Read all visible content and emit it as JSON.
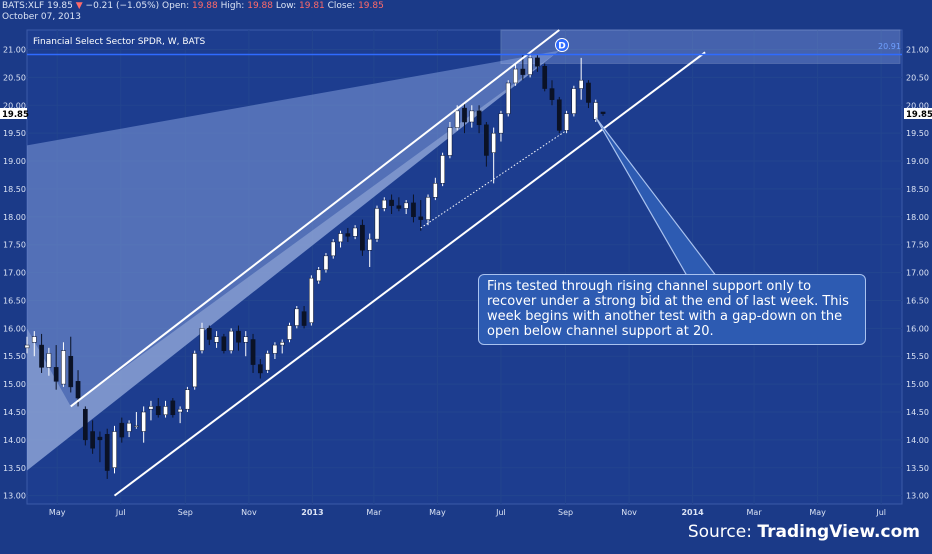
{
  "header": {
    "symbol": "BATS:XLF",
    "last": "19.85",
    "change_arrow": "▼",
    "change": "−0.21 (−1.05%)",
    "open_label": "Open:",
    "open": "19.88",
    "high_label": "High:",
    "high": "19.88",
    "low_label": "Low:",
    "low": "19.81",
    "close_label": "Close:",
    "close": "19.85",
    "date": "October 07, 2013"
  },
  "pane_title": "Financial Select Sector SPDR, W, BATS",
  "price_badge_left": "19.85",
  "price_badge_right": "19.85",
  "marker_label": "D",
  "level_label": "20.91",
  "annotation": "Fins tested through rising channel support only to recover under a strong bid at the end of last week. This week begins with another test with a gap-down on the open below channel support at 20.",
  "source_prefix": "Source: ",
  "source_name": "TradingView.com",
  "colors": {
    "background": "#1b3a88",
    "up": "#ffffff",
    "down": "#0b1226",
    "line": "#ffffff",
    "level": "#2f6bff"
  },
  "chart_data": {
    "type": "candlestick",
    "title": "Financial Select Sector SPDR, W, BATS",
    "ylim": [
      12.85,
      21.35
    ],
    "yticks": [
      "21.00",
      "20.50",
      "20.00",
      "19.50",
      "19.00",
      "18.50",
      "18.00",
      "17.50",
      "17.00",
      "16.50",
      "16.00",
      "15.50",
      "15.00",
      "14.50",
      "14.00",
      "13.50",
      "13.00"
    ],
    "xticks": [
      "May",
      "Jul",
      "Sep",
      "Nov",
      "2013",
      "Mar",
      "May",
      "Jul",
      "Sep",
      "Nov",
      "2014",
      "Mar",
      "May",
      "Jul"
    ],
    "xrange": [
      "2012-04-02",
      "2014-07-21"
    ],
    "candles": [
      {
        "t": "2012-04-02",
        "o": 15.65,
        "h": 15.85,
        "l": 15.55,
        "c": 15.7
      },
      {
        "t": "2012-04-09",
        "o": 15.75,
        "h": 15.95,
        "l": 15.5,
        "c": 15.85
      },
      {
        "t": "2012-04-16",
        "o": 15.7,
        "h": 15.9,
        "l": 15.2,
        "c": 15.3
      },
      {
        "t": "2012-04-23",
        "o": 15.3,
        "h": 15.65,
        "l": 15.15,
        "c": 15.55
      },
      {
        "t": "2012-04-30",
        "o": 15.3,
        "h": 15.7,
        "l": 14.9,
        "c": 15.05
      },
      {
        "t": "2012-05-07",
        "o": 15.0,
        "h": 15.75,
        "l": 14.95,
        "c": 15.6
      },
      {
        "t": "2012-05-14",
        "o": 15.5,
        "h": 15.85,
        "l": 14.85,
        "c": 14.95
      },
      {
        "t": "2012-05-21",
        "o": 15.05,
        "h": 15.25,
        "l": 14.6,
        "c": 14.75
      },
      {
        "t": "2012-05-28",
        "o": 14.55,
        "h": 14.6,
        "l": 13.9,
        "c": 14.0
      },
      {
        "t": "2012-06-04",
        "o": 14.15,
        "h": 14.35,
        "l": 13.75,
        "c": 13.85
      },
      {
        "t": "2012-06-11",
        "o": 14.05,
        "h": 14.15,
        "l": 13.6,
        "c": 14.0
      },
      {
        "t": "2012-06-18",
        "o": 14.1,
        "h": 14.2,
        "l": 13.3,
        "c": 13.45
      },
      {
        "t": "2012-06-25",
        "o": 13.5,
        "h": 14.25,
        "l": 13.4,
        "c": 14.15
      },
      {
        "t": "2012-07-02",
        "o": 14.3,
        "h": 14.4,
        "l": 13.95,
        "c": 14.05
      },
      {
        "t": "2012-07-09",
        "o": 14.15,
        "h": 14.35,
        "l": 14.05,
        "c": 14.3
      },
      {
        "t": "2012-07-16",
        "o": 14.25,
        "h": 14.5,
        "l": 14.2,
        "c": 14.25
      },
      {
        "t": "2012-07-23",
        "o": 14.15,
        "h": 14.6,
        "l": 13.95,
        "c": 14.5
      },
      {
        "t": "2012-07-30",
        "o": 14.55,
        "h": 14.7,
        "l": 14.35,
        "c": 14.6
      },
      {
        "t": "2012-08-06",
        "o": 14.6,
        "h": 14.75,
        "l": 14.4,
        "c": 14.45
      },
      {
        "t": "2012-08-13",
        "o": 14.45,
        "h": 14.7,
        "l": 14.4,
        "c": 14.6
      },
      {
        "t": "2012-08-20",
        "o": 14.7,
        "h": 14.75,
        "l": 14.4,
        "c": 14.45
      },
      {
        "t": "2012-08-27",
        "o": 14.5,
        "h": 14.6,
        "l": 14.3,
        "c": 14.55
      },
      {
        "t": "2012-09-03",
        "o": 14.55,
        "h": 14.95,
        "l": 14.5,
        "c": 14.9
      },
      {
        "t": "2012-09-10",
        "o": 14.95,
        "h": 15.6,
        "l": 14.9,
        "c": 15.55
      },
      {
        "t": "2012-09-17",
        "o": 15.6,
        "h": 16.1,
        "l": 15.55,
        "c": 16.0
      },
      {
        "t": "2012-09-24",
        "o": 16.0,
        "h": 16.05,
        "l": 15.7,
        "c": 15.8
      },
      {
        "t": "2012-10-01",
        "o": 15.75,
        "h": 15.95,
        "l": 15.65,
        "c": 15.85
      },
      {
        "t": "2012-10-08",
        "o": 15.85,
        "h": 15.9,
        "l": 15.55,
        "c": 15.6
      },
      {
        "t": "2012-10-15",
        "o": 15.6,
        "h": 16.0,
        "l": 15.55,
        "c": 15.95
      },
      {
        "t": "2012-10-22",
        "o": 15.95,
        "h": 16.05,
        "l": 15.6,
        "c": 15.75
      },
      {
        "t": "2012-10-29",
        "o": 15.75,
        "h": 15.95,
        "l": 15.5,
        "c": 15.85
      },
      {
        "t": "2012-11-05",
        "o": 15.8,
        "h": 15.9,
        "l": 15.2,
        "c": 15.35
      },
      {
        "t": "2012-11-12",
        "o": 15.35,
        "h": 15.45,
        "l": 15.1,
        "c": 15.2
      },
      {
        "t": "2012-11-19",
        "o": 15.25,
        "h": 15.6,
        "l": 15.2,
        "c": 15.55
      },
      {
        "t": "2012-11-26",
        "o": 15.55,
        "h": 15.75,
        "l": 15.45,
        "c": 15.7
      },
      {
        "t": "2012-12-03",
        "o": 15.7,
        "h": 15.8,
        "l": 15.55,
        "c": 15.75
      },
      {
        "t": "2012-12-10",
        "o": 15.8,
        "h": 16.1,
        "l": 15.75,
        "c": 16.05
      },
      {
        "t": "2012-12-17",
        "o": 16.05,
        "h": 16.4,
        "l": 16.0,
        "c": 16.35
      },
      {
        "t": "2012-12-24",
        "o": 16.3,
        "h": 16.4,
        "l": 16.0,
        "c": 16.05
      },
      {
        "t": "2012-12-31",
        "o": 16.1,
        "h": 16.95,
        "l": 16.05,
        "c": 16.9
      },
      {
        "t": "2013-01-07",
        "o": 16.85,
        "h": 17.1,
        "l": 16.8,
        "c": 17.05
      },
      {
        "t": "2013-01-14",
        "o": 17.05,
        "h": 17.35,
        "l": 17.0,
        "c": 17.3
      },
      {
        "t": "2013-01-21",
        "o": 17.3,
        "h": 17.6,
        "l": 17.25,
        "c": 17.55
      },
      {
        "t": "2013-01-28",
        "o": 17.55,
        "h": 17.75,
        "l": 17.45,
        "c": 17.7
      },
      {
        "t": "2013-02-04",
        "o": 17.7,
        "h": 17.8,
        "l": 17.55,
        "c": 17.65
      },
      {
        "t": "2013-02-11",
        "o": 17.65,
        "h": 17.85,
        "l": 17.6,
        "c": 17.8
      },
      {
        "t": "2013-02-18",
        "o": 17.85,
        "h": 17.95,
        "l": 17.3,
        "c": 17.4
      },
      {
        "t": "2013-02-25",
        "o": 17.4,
        "h": 17.7,
        "l": 17.1,
        "c": 17.6
      },
      {
        "t": "2013-03-04",
        "o": 17.6,
        "h": 18.2,
        "l": 17.55,
        "c": 18.15
      },
      {
        "t": "2013-03-11",
        "o": 18.15,
        "h": 18.35,
        "l": 18.1,
        "c": 18.3
      },
      {
        "t": "2013-03-18",
        "o": 18.3,
        "h": 18.4,
        "l": 18.05,
        "c": 18.2
      },
      {
        "t": "2013-03-25",
        "o": 18.2,
        "h": 18.35,
        "l": 18.1,
        "c": 18.15
      },
      {
        "t": "2013-04-01",
        "o": 18.15,
        "h": 18.3,
        "l": 18.05,
        "c": 18.25
      },
      {
        "t": "2013-04-08",
        "o": 18.25,
        "h": 18.4,
        "l": 17.9,
        "c": 18.0
      },
      {
        "t": "2013-04-15",
        "o": 18.0,
        "h": 18.3,
        "l": 17.75,
        "c": 17.95
      },
      {
        "t": "2013-04-22",
        "o": 17.95,
        "h": 18.4,
        "l": 17.85,
        "c": 18.35
      },
      {
        "t": "2013-04-29",
        "o": 18.35,
        "h": 18.7,
        "l": 18.3,
        "c": 18.6
      },
      {
        "t": "2013-05-06",
        "o": 18.6,
        "h": 19.15,
        "l": 18.55,
        "c": 19.1
      },
      {
        "t": "2013-05-13",
        "o": 19.1,
        "h": 19.7,
        "l": 19.05,
        "c": 19.6
      },
      {
        "t": "2013-05-20",
        "o": 19.6,
        "h": 20.0,
        "l": 19.55,
        "c": 19.9
      },
      {
        "t": "2013-05-27",
        "o": 19.95,
        "h": 20.05,
        "l": 19.5,
        "c": 19.7
      },
      {
        "t": "2013-06-03",
        "o": 19.7,
        "h": 20.0,
        "l": 19.6,
        "c": 19.9
      },
      {
        "t": "2013-06-10",
        "o": 19.9,
        "h": 20.0,
        "l": 19.5,
        "c": 19.65
      },
      {
        "t": "2013-06-17",
        "o": 19.65,
        "h": 19.7,
        "l": 18.9,
        "c": 19.1
      },
      {
        "t": "2013-06-24",
        "o": 19.15,
        "h": 19.6,
        "l": 18.6,
        "c": 19.5
      },
      {
        "t": "2013-07-01",
        "o": 19.5,
        "h": 19.9,
        "l": 19.35,
        "c": 19.85
      },
      {
        "t": "2013-07-08",
        "o": 19.85,
        "h": 20.45,
        "l": 19.8,
        "c": 20.4
      },
      {
        "t": "2013-07-15",
        "o": 20.4,
        "h": 20.75,
        "l": 20.35,
        "c": 20.65
      },
      {
        "t": "2013-07-22",
        "o": 20.65,
        "h": 20.9,
        "l": 20.45,
        "c": 20.55
      },
      {
        "t": "2013-07-29",
        "o": 20.55,
        "h": 20.9,
        "l": 20.5,
        "c": 20.85
      },
      {
        "t": "2013-08-05",
        "o": 20.85,
        "h": 20.9,
        "l": 20.6,
        "c": 20.7
      },
      {
        "t": "2013-08-12",
        "o": 20.7,
        "h": 20.75,
        "l": 20.25,
        "c": 20.3
      },
      {
        "t": "2013-08-19",
        "o": 20.3,
        "h": 20.45,
        "l": 20.0,
        "c": 20.1
      },
      {
        "t": "2013-08-26",
        "o": 20.1,
        "h": 20.15,
        "l": 19.5,
        "c": 19.55
      },
      {
        "t": "2013-09-02",
        "o": 19.55,
        "h": 19.9,
        "l": 19.5,
        "c": 19.85
      },
      {
        "t": "2013-09-09",
        "o": 19.85,
        "h": 20.35,
        "l": 19.8,
        "c": 20.3
      },
      {
        "t": "2013-09-16",
        "o": 20.3,
        "h": 20.85,
        "l": 20.1,
        "c": 20.45
      },
      {
        "t": "2013-09-23",
        "o": 20.4,
        "h": 20.45,
        "l": 19.95,
        "c": 20.05
      },
      {
        "t": "2013-09-30",
        "o": 19.75,
        "h": 20.1,
        "l": 19.7,
        "c": 20.05
      },
      {
        "t": "2013-10-07",
        "o": 19.88,
        "h": 19.88,
        "l": 19.81,
        "c": 19.85
      }
    ],
    "lines": [
      {
        "name": "channel-support",
        "from": {
          "t": "2012-06-25",
          "y": 13.0
        },
        "to": {
          "t": "2014-01-13",
          "y": 20.95
        }
      },
      {
        "name": "channel-resistance",
        "from": {
          "t": "2012-05-14",
          "y": 14.6
        },
        "to": {
          "t": "2013-08-26",
          "y": 21.35
        }
      },
      {
        "name": "dotted-support",
        "from": {
          "t": "2013-04-15",
          "y": 17.8
        },
        "to": {
          "t": "2013-09-02",
          "y": 19.55
        }
      },
      {
        "name": "resistance-level",
        "y": 20.91
      }
    ]
  }
}
